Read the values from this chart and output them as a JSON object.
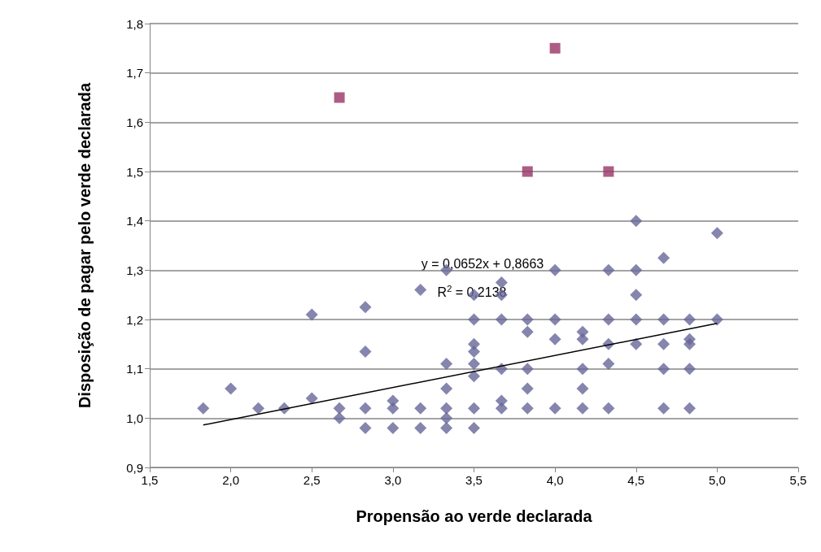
{
  "chart_data": {
    "type": "scatter",
    "xlabel": "Propensão ao verde declarada",
    "ylabel": "Disposição de pagar pelo verde declarada",
    "xlim": [
      1.5,
      5.5
    ],
    "ylim": [
      0.9,
      1.8
    ],
    "xticks": [
      {
        "value": 1.5,
        "label": "1,5"
      },
      {
        "value": 2.0,
        "label": "2,0"
      },
      {
        "value": 2.5,
        "label": "2,5"
      },
      {
        "value": 3.0,
        "label": "3,0"
      },
      {
        "value": 3.5,
        "label": "3,5"
      },
      {
        "value": 4.0,
        "label": "4,0"
      },
      {
        "value": 4.5,
        "label": "4,5"
      },
      {
        "value": 5.0,
        "label": "5,0"
      },
      {
        "value": 5.5,
        "label": "5,5"
      }
    ],
    "yticks": [
      {
        "value": 0.9,
        "label": "0,9"
      },
      {
        "value": 1.0,
        "label": "1,0"
      },
      {
        "value": 1.1,
        "label": "1,1"
      },
      {
        "value": 1.2,
        "label": "1,2"
      },
      {
        "value": 1.3,
        "label": "1,3"
      },
      {
        "value": 1.4,
        "label": "1,4"
      },
      {
        "value": 1.5,
        "label": "1,5"
      },
      {
        "value": 1.6,
        "label": "1,6"
      },
      {
        "value": 1.7,
        "label": "1,7"
      },
      {
        "value": 1.8,
        "label": "1,8"
      }
    ],
    "grid": "y",
    "series": [
      {
        "marker": "diamond",
        "color": "#666699",
        "x": [
          1.83,
          2.0,
          2.17,
          2.33,
          2.5,
          2.5,
          2.67,
          2.67,
          2.83,
          2.83,
          2.83,
          2.83,
          3.0,
          3.0,
          3.0,
          3.17,
          3.17,
          3.17,
          3.33,
          3.33,
          3.33,
          3.33,
          3.33,
          3.33,
          3.5,
          3.5,
          3.5,
          3.5,
          3.5,
          3.5,
          3.5,
          3.5,
          3.67,
          3.67,
          3.67,
          3.67,
          3.67,
          3.67,
          3.83,
          3.83,
          3.83,
          3.83,
          3.83,
          4.0,
          4.0,
          4.0,
          4.0,
          4.17,
          4.17,
          4.17,
          4.17,
          4.17,
          4.33,
          4.33,
          4.33,
          4.33,
          4.33,
          4.5,
          4.5,
          4.5,
          4.5,
          4.5,
          4.67,
          4.67,
          4.67,
          4.67,
          4.67,
          4.83,
          4.83,
          4.83,
          4.83,
          4.83,
          5.0,
          5.0
        ],
        "values": [
          1.02,
          1.06,
          1.02,
          1.02,
          1.21,
          1.04,
          1.02,
          1.0,
          1.225,
          1.135,
          1.02,
          0.98,
          1.035,
          1.02,
          0.98,
          1.26,
          1.02,
          0.98,
          1.3,
          1.11,
          1.06,
          1.02,
          1.0,
          0.98,
          1.25,
          1.2,
          1.15,
          1.135,
          1.11,
          1.085,
          1.02,
          0.98,
          1.275,
          1.25,
          1.2,
          1.1,
          1.035,
          1.02,
          1.2,
          1.175,
          1.1,
          1.06,
          1.02,
          1.3,
          1.2,
          1.16,
          1.02,
          1.175,
          1.16,
          1.1,
          1.06,
          1.02,
          1.3,
          1.2,
          1.15,
          1.11,
          1.02,
          1.4,
          1.3,
          1.25,
          1.2,
          1.15,
          1.325,
          1.2,
          1.15,
          1.1,
          1.02,
          1.2,
          1.16,
          1.15,
          1.1,
          1.02,
          1.375,
          1.2
        ]
      },
      {
        "marker": "square",
        "color": "#993366",
        "x": [
          2.67,
          4.0,
          3.83,
          4.33
        ],
        "values": [
          1.65,
          1.75,
          1.5,
          1.5
        ]
      },
      {
        "type": "line",
        "marker": "none",
        "line_style": "solid",
        "color": "#000000",
        "x": [
          1.83,
          5.0
        ],
        "values": [
          0.986,
          1.192
        ]
      }
    ],
    "annotations": [
      "y = 0,0652x + 0,8663",
      "R$^{2}$ = 0,2138"
    ]
  }
}
